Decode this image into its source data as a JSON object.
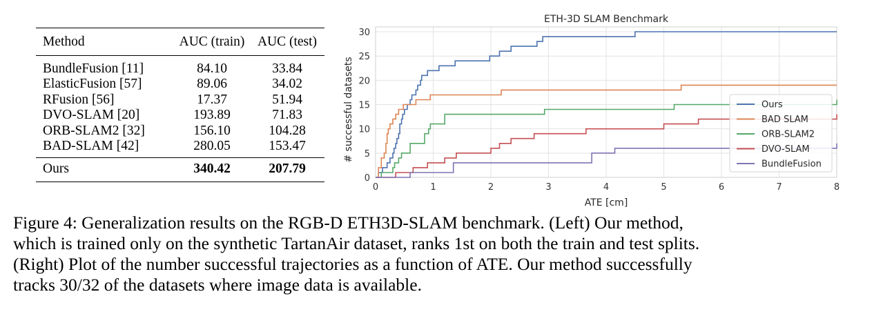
{
  "table": {
    "headers": [
      "Method",
      "AUC (train)",
      "AUC (test)"
    ],
    "rows": [
      {
        "method": "BundleFusion [11]",
        "train": "84.10",
        "test": "33.84"
      },
      {
        "method": "ElasticFusion [57]",
        "train": "89.06",
        "test": "34.02"
      },
      {
        "method": "RFusion [56]",
        "train": "17.37",
        "test": "51.94"
      },
      {
        "method": "DVO-SLAM [20]",
        "train": "193.89",
        "test": "71.83"
      },
      {
        "method": "ORB-SLAM2 [32]",
        "train": "156.10",
        "test": "104.28"
      },
      {
        "method": "BAD-SLAM [42]",
        "train": "280.05",
        "test": "153.47"
      }
    ],
    "ours": {
      "method": "Ours",
      "train": "340.42",
      "test": "207.79"
    }
  },
  "chart_data": {
    "type": "line",
    "title": "ETH-3D SLAM Benchmark",
    "xlabel": "ATE [cm]",
    "ylabel": "# successful datasets",
    "xlim": [
      0,
      8
    ],
    "ylim": [
      0,
      31
    ],
    "xticks": [
      "0",
      "1",
      "2",
      "3",
      "4",
      "5",
      "6",
      "7",
      "8"
    ],
    "yticks": [
      "0",
      "5",
      "10",
      "15",
      "20",
      "25",
      "30"
    ],
    "grid": true,
    "legend_position": "right",
    "series": [
      {
        "name": "Ours",
        "color": "#4c72b0",
        "points": [
          [
            0,
            0
          ],
          [
            0.05,
            1
          ],
          [
            0.1,
            1
          ],
          [
            0.12,
            2
          ],
          [
            0.17,
            2
          ],
          [
            0.2,
            3
          ],
          [
            0.23,
            3
          ],
          [
            0.25,
            4
          ],
          [
            0.28,
            4
          ],
          [
            0.3,
            5
          ],
          [
            0.32,
            6
          ],
          [
            0.35,
            7
          ],
          [
            0.37,
            8
          ],
          [
            0.4,
            9
          ],
          [
            0.42,
            11
          ],
          [
            0.45,
            12
          ],
          [
            0.47,
            13
          ],
          [
            0.5,
            14
          ],
          [
            0.55,
            15
          ],
          [
            0.6,
            16
          ],
          [
            0.63,
            17
          ],
          [
            0.68,
            17
          ],
          [
            0.7,
            18
          ],
          [
            0.73,
            19
          ],
          [
            0.78,
            20
          ],
          [
            0.8,
            21
          ],
          [
            0.85,
            21
          ],
          [
            0.9,
            22
          ],
          [
            1.08,
            22
          ],
          [
            1.1,
            23
          ],
          [
            1.35,
            23
          ],
          [
            1.38,
            24
          ],
          [
            1.95,
            24
          ],
          [
            1.98,
            25
          ],
          [
            2.1,
            25
          ],
          [
            2.15,
            26
          ],
          [
            2.3,
            26
          ],
          [
            2.35,
            27
          ],
          [
            2.75,
            27
          ],
          [
            2.8,
            28
          ],
          [
            2.87,
            28
          ],
          [
            2.9,
            29
          ],
          [
            3.9,
            29
          ],
          [
            3.95,
            29
          ],
          [
            4.48,
            29
          ],
          [
            4.5,
            30
          ],
          [
            8,
            30
          ]
        ]
      },
      {
        "name": "BAD SLAM",
        "color": "#dd8452",
        "points": [
          [
            0,
            0
          ],
          [
            0.05,
            2
          ],
          [
            0.1,
            4
          ],
          [
            0.15,
            5
          ],
          [
            0.18,
            7
          ],
          [
            0.2,
            9
          ],
          [
            0.22,
            10
          ],
          [
            0.25,
            11
          ],
          [
            0.3,
            12
          ],
          [
            0.35,
            13
          ],
          [
            0.4,
            14
          ],
          [
            0.45,
            14
          ],
          [
            0.48,
            15
          ],
          [
            0.65,
            15
          ],
          [
            0.7,
            16
          ],
          [
            0.9,
            16
          ],
          [
            0.95,
            17
          ],
          [
            2.15,
            17
          ],
          [
            2.18,
            18
          ],
          [
            5.28,
            18
          ],
          [
            5.3,
            19
          ],
          [
            8,
            19
          ]
        ]
      },
      {
        "name": "ORB-SLAM2",
        "color": "#55a868",
        "points": [
          [
            0,
            0
          ],
          [
            0.1,
            1
          ],
          [
            0.25,
            1
          ],
          [
            0.3,
            2
          ],
          [
            0.33,
            3
          ],
          [
            0.4,
            4
          ],
          [
            0.45,
            5
          ],
          [
            0.55,
            5
          ],
          [
            0.6,
            7
          ],
          [
            0.8,
            7
          ],
          [
            0.85,
            9
          ],
          [
            0.92,
            10
          ],
          [
            0.95,
            11
          ],
          [
            1.15,
            11
          ],
          [
            1.2,
            13
          ],
          [
            2.9,
            13
          ],
          [
            2.93,
            14
          ],
          [
            5.15,
            14
          ],
          [
            5.18,
            15
          ],
          [
            7.98,
            15
          ],
          [
            8,
            16
          ]
        ]
      },
      {
        "name": "DVO-SLAM",
        "color": "#c44e52",
        "points": [
          [
            0,
            0
          ],
          [
            0.3,
            0
          ],
          [
            0.35,
            1
          ],
          [
            0.6,
            1
          ],
          [
            0.65,
            2
          ],
          [
            0.88,
            2
          ],
          [
            0.9,
            3
          ],
          [
            1.15,
            3
          ],
          [
            1.2,
            4
          ],
          [
            1.35,
            4
          ],
          [
            1.4,
            5
          ],
          [
            1.95,
            5
          ],
          [
            2.0,
            6
          ],
          [
            2.1,
            6
          ],
          [
            2.15,
            7
          ],
          [
            2.3,
            7
          ],
          [
            2.35,
            8
          ],
          [
            2.7,
            8
          ],
          [
            2.75,
            9
          ],
          [
            3.6,
            9
          ],
          [
            3.65,
            10
          ],
          [
            4.95,
            10
          ],
          [
            5.0,
            11
          ],
          [
            5.55,
            11
          ],
          [
            5.6,
            12
          ],
          [
            7.95,
            12
          ],
          [
            8,
            13
          ]
        ]
      },
      {
        "name": "BundleFusion",
        "color": "#8172b3",
        "points": [
          [
            0,
            0
          ],
          [
            0.05,
            0
          ],
          [
            0.1,
            0
          ],
          [
            0.55,
            0
          ],
          [
            0.6,
            1
          ],
          [
            1.3,
            1
          ],
          [
            1.35,
            3
          ],
          [
            3.7,
            3
          ],
          [
            3.75,
            5
          ],
          [
            4.1,
            5
          ],
          [
            4.15,
            6
          ],
          [
            8,
            7
          ]
        ]
      }
    ]
  },
  "caption": [
    "Figure 4:  Generalization results on the RGB-D ETH3D-SLAM benchmark.  (Left) Our method,",
    "which is trained only on the synthetic TartanAir dataset, ranks 1st on both the train and test splits.",
    "(Right) Plot of the number successful trajectories as a function of ATE. Our method successfully",
    "tracks 30/32 of the datasets where image data is available."
  ]
}
